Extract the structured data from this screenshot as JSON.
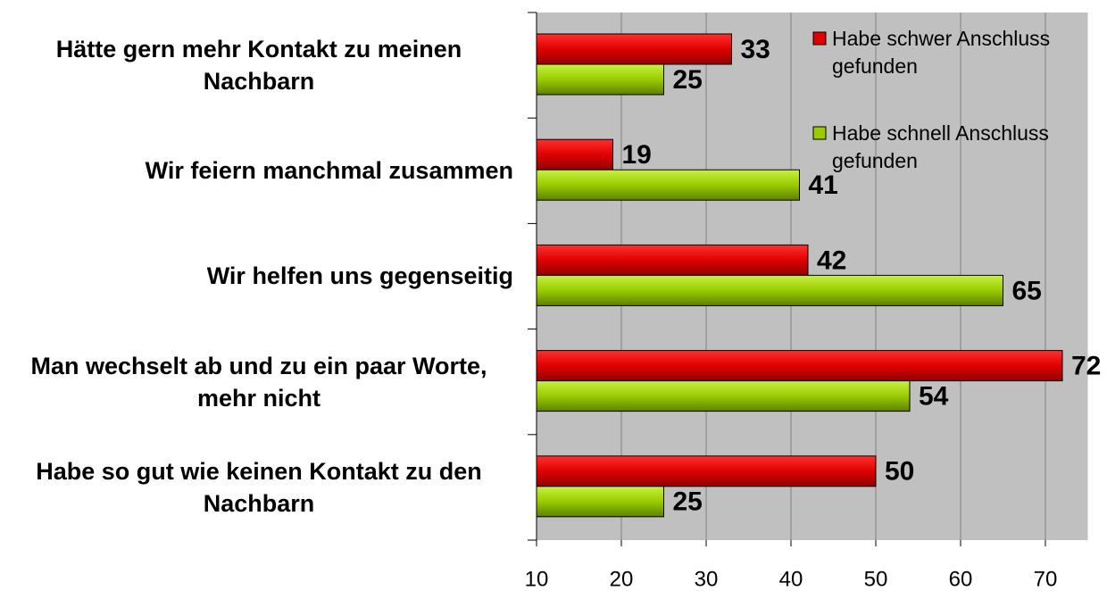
{
  "chart_data": {
    "type": "barh",
    "categories": [
      "Hätte gern mehr Kontakt zu meinen Nachbarn",
      "Wir feiern manchmal zusammen",
      "Wir helfen uns gegenseitig",
      "Man wechselt ab und zu ein paar Worte, mehr nicht",
      "Habe so gut wie keinen Kontakt zu den Nachbarn"
    ],
    "series": [
      {
        "name": "Habe schwer Anschluss gefunden",
        "color": "#e00000",
        "values": [
          33,
          19,
          42,
          72,
          50
        ]
      },
      {
        "name": "Habe schnell Anschluss gefunden",
        "color": "#99cc00",
        "values": [
          25,
          41,
          65,
          54,
          25
        ]
      }
    ],
    "xlim": [
      10,
      75
    ],
    "xticks": [
      10,
      20,
      30,
      40,
      50,
      60,
      70
    ],
    "grid": true,
    "legend": "top-right"
  }
}
